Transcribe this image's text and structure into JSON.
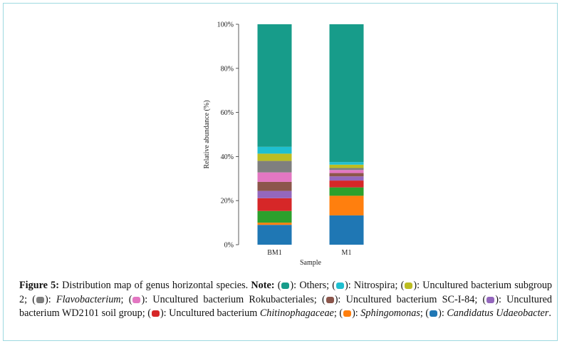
{
  "colors": {
    "others": "#179c8a",
    "nitrospira": "#1fbfd0",
    "subgroup2": "#bcbd22",
    "flavobacterium": "#7f7f7f",
    "rokubacteriales": "#e377c2",
    "sci84": "#8c564b",
    "wd2101": "#9467bd",
    "chitinophagaceae": "#d62728",
    "sphingomonas": "#ff7f0e",
    "udaeobacter": "#1f77b4",
    "unlabeled_green": "#2ca02c"
  },
  "chart_data": {
    "type": "bar",
    "stacked": true,
    "ylabel": "Relative abundance (%)",
    "xlabel": "Sample",
    "ylim": [
      0,
      100
    ],
    "yticks": [
      "0%",
      "20%",
      "40%",
      "60%",
      "80%",
      "100%"
    ],
    "categories": [
      "BM1",
      "M1"
    ],
    "series": [
      {
        "key": "udaeobacter",
        "values": [
          9,
          13.3
        ]
      },
      {
        "key": "sphingomonas",
        "values": [
          1,
          8.9
        ]
      },
      {
        "key": "unlabeled_green",
        "values": [
          5.3,
          3.8
        ]
      },
      {
        "key": "chitinophagaceae",
        "values": [
          5.8,
          3.1
        ]
      },
      {
        "key": "wd2101",
        "values": [
          3.3,
          1.9
        ]
      },
      {
        "key": "sci84",
        "values": [
          4.1,
          1.5
        ]
      },
      {
        "key": "rokubacteriales",
        "values": [
          4.3,
          1.4
        ]
      },
      {
        "key": "flavobacterium",
        "values": [
          5.2,
          0.9
        ]
      },
      {
        "key": "subgroup2",
        "values": [
          3.3,
          1.5
        ]
      },
      {
        "key": "nitrospira",
        "values": [
          3.1,
          1.2
        ]
      },
      {
        "key": "others",
        "values": [
          55.6,
          62.5
        ]
      }
    ]
  },
  "caption": {
    "figure_label": "Figure 5:",
    "title": " Distribution map of genus horizontal species. ",
    "note_label": "Note:",
    "items": [
      {
        "key": "others",
        "pre": " (",
        "post": "): ",
        "text": "Others",
        "italic": false,
        "sep": ";"
      },
      {
        "key": "nitrospira",
        "pre": " (",
        "post": "): ",
        "text": "Nitrospira",
        "italic": false,
        "sep": ";"
      },
      {
        "key": "subgroup2",
        "pre": " (",
        "post": "): ",
        "text": "Uncultured bacterium subgroup 2",
        "italic": false,
        "sep": ";"
      },
      {
        "key": "flavobacterium",
        "pre": " (",
        "post": "): ",
        "text": "Flavobacterium",
        "italic": true,
        "sep": ";"
      },
      {
        "key": "rokubacteriales",
        "pre": " (",
        "post": "): ",
        "text": "Uncultured bacterium Rokubacteriales",
        "italic": false,
        "sep": ";"
      },
      {
        "key": "sci84",
        "pre": " (",
        "post": "): ",
        "text": "Uncultured bacterium SC-I-84",
        "italic": false,
        "sep": ";"
      },
      {
        "key": "wd2101",
        "pre": " (",
        "post": "): ",
        "text": "Uncultured bacterium WD2101 soil group",
        "italic": false,
        "sep": ";"
      },
      {
        "key": "chitinophagaceae",
        "pre": " (",
        "post": "): ",
        "text": "Uncultured bacterium ",
        "italic_text": "Chitinophagaceae",
        "italic": false,
        "sep": ";"
      },
      {
        "key": "sphingomonas",
        "pre": " (",
        "post": "): ",
        "text": "Sphingomonas",
        "italic": true,
        "sep": ";"
      },
      {
        "key": "udaeobacter",
        "pre": " (",
        "post": "): ",
        "text": "Candidatus Udaeobacter",
        "italic": true,
        "sep": "."
      }
    ]
  }
}
